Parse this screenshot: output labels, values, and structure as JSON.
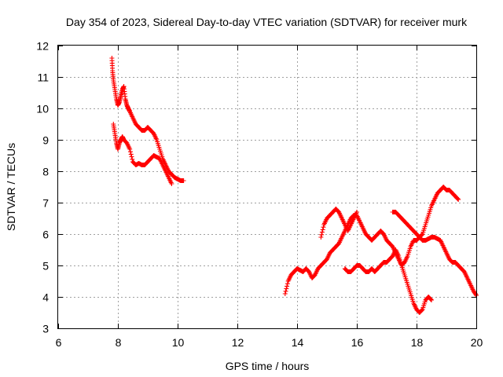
{
  "chart_data": {
    "type": "scatter",
    "title": "Day 354 of 2023, Sidereal Day-to-day VTEC variation (SDTVAR) for receiver murk",
    "xlabel": "GPS time / hours",
    "ylabel": "SDTVAR / TECUs",
    "xlim": [
      6,
      20
    ],
    "ylim": [
      3,
      12
    ],
    "xticks": [
      "6",
      "8",
      "10",
      "12",
      "14",
      "16",
      "18",
      "20"
    ],
    "yticks": [
      "3",
      "4",
      "5",
      "6",
      "7",
      "8",
      "9",
      "10",
      "11",
      "12"
    ],
    "grid": true,
    "marker": "plus",
    "color": "#ff0000",
    "series": [
      {
        "x": [
          7.8,
          7.82,
          7.85,
          7.9,
          7.95,
          8.0,
          8.05,
          8.1,
          8.15,
          8.2,
          8.25,
          8.3,
          8.35,
          8.4,
          8.5,
          8.6,
          8.7,
          8.8,
          8.9,
          9.0,
          9.1,
          9.2,
          9.3,
          9.4,
          9.5,
          9.6,
          9.7,
          9.8,
          9.9,
          10.0,
          10.1,
          10.2
        ],
        "y": [
          11.6,
          11.2,
          10.9,
          10.6,
          10.3,
          10.1,
          10.2,
          10.4,
          10.6,
          10.7,
          10.3,
          10.1,
          10.0,
          9.9,
          9.7,
          9.5,
          9.4,
          9.3,
          9.3,
          9.4,
          9.3,
          9.2,
          9.0,
          8.7,
          8.4,
          8.2,
          8.0,
          7.9,
          7.8,
          7.75,
          7.7,
          7.7
        ]
      },
      {
        "x": [
          7.85,
          7.9,
          7.95,
          8.0,
          8.05,
          8.1,
          8.15,
          8.2,
          8.3,
          8.4,
          8.5,
          8.6,
          8.7,
          8.8,
          8.9,
          9.0,
          9.1,
          9.2,
          9.3,
          9.4,
          9.5,
          9.6,
          9.7,
          9.8
        ],
        "y": [
          9.5,
          9.2,
          8.9,
          8.7,
          8.9,
          9.0,
          9.1,
          9.0,
          8.9,
          8.7,
          8.3,
          8.2,
          8.25,
          8.2,
          8.2,
          8.3,
          8.4,
          8.5,
          8.45,
          8.4,
          8.2,
          8.0,
          7.8,
          7.6
        ]
      },
      {
        "x": [
          13.6,
          13.7,
          13.8,
          13.9,
          14.0,
          14.1,
          14.2,
          14.3,
          14.4,
          14.5,
          14.6,
          14.7,
          14.8,
          14.9,
          15.0,
          15.1,
          15.2,
          15.3,
          15.4,
          15.5,
          15.6,
          15.7,
          15.8,
          15.9,
          16.0,
          16.1,
          16.2,
          16.3,
          16.4,
          16.5,
          16.6,
          16.7,
          16.8,
          16.9,
          17.0,
          17.1,
          17.2,
          17.3,
          17.4,
          17.5,
          17.6,
          17.7,
          17.8,
          17.9,
          18.0,
          18.1,
          18.2,
          18.3,
          18.4,
          18.5,
          18.6,
          18.7,
          18.8,
          18.9,
          19.0,
          19.1,
          19.2,
          19.3,
          19.4,
          19.5,
          19.6,
          19.7,
          19.8,
          19.9,
          20.0
        ],
        "y": [
          4.1,
          4.5,
          4.7,
          4.8,
          4.9,
          4.85,
          4.8,
          4.9,
          4.8,
          4.6,
          4.7,
          4.9,
          5.0,
          5.1,
          5.2,
          5.4,
          5.5,
          5.6,
          5.7,
          5.9,
          6.1,
          6.3,
          6.5,
          6.6,
          6.6,
          6.4,
          6.2,
          6.0,
          5.9,
          5.8,
          5.9,
          6.0,
          6.1,
          6.0,
          5.8,
          5.7,
          5.6,
          5.4,
          5.2,
          5.0,
          5.1,
          5.3,
          5.6,
          5.8,
          5.8,
          5.9,
          5.8,
          5.8,
          5.85,
          5.9,
          5.9,
          5.85,
          5.8,
          5.6,
          5.4,
          5.2,
          5.1,
          5.1,
          5.0,
          4.9,
          4.8,
          4.6,
          4.4,
          4.2,
          4.05
        ]
      },
      {
        "x": [
          14.8,
          14.9,
          15.0,
          15.1,
          15.2,
          15.3,
          15.4,
          15.5,
          15.6,
          15.7,
          15.8,
          15.9,
          16.0
        ],
        "y": [
          5.9,
          6.3,
          6.5,
          6.6,
          6.7,
          6.8,
          6.7,
          6.5,
          6.3,
          6.1,
          6.3,
          6.5,
          6.7
        ]
      },
      {
        "x": [
          15.6,
          15.7,
          15.8,
          15.9,
          16.0,
          16.1,
          16.2,
          16.3,
          16.4,
          16.5,
          16.6,
          16.7,
          16.8,
          16.9,
          17.0,
          17.1,
          17.2,
          17.3,
          17.4,
          17.5,
          17.6,
          17.7,
          17.8,
          17.9,
          18.0,
          18.1,
          18.2,
          18.3,
          18.4,
          18.5
        ],
        "y": [
          4.9,
          4.8,
          4.8,
          4.9,
          5.0,
          5.0,
          4.9,
          4.8,
          4.8,
          4.9,
          4.8,
          4.9,
          5.0,
          5.1,
          5.1,
          5.2,
          5.3,
          5.5,
          5.3,
          5.0,
          4.7,
          4.4,
          4.1,
          3.8,
          3.6,
          3.5,
          3.6,
          3.9,
          4.0,
          3.9
        ]
      },
      {
        "x": [
          17.2,
          17.3,
          17.4,
          17.5,
          17.6,
          17.7,
          17.8,
          17.9,
          18.0,
          18.1,
          18.2,
          18.3,
          18.4,
          18.5,
          18.6,
          18.7,
          18.8,
          18.9,
          19.0,
          19.1,
          19.2,
          19.3,
          19.4
        ],
        "y": [
          6.7,
          6.7,
          6.6,
          6.5,
          6.4,
          6.3,
          6.2,
          6.1,
          6.0,
          5.9,
          6.0,
          6.3,
          6.6,
          6.9,
          7.1,
          7.3,
          7.4,
          7.5,
          7.4,
          7.4,
          7.3,
          7.2,
          7.1
        ]
      }
    ]
  }
}
